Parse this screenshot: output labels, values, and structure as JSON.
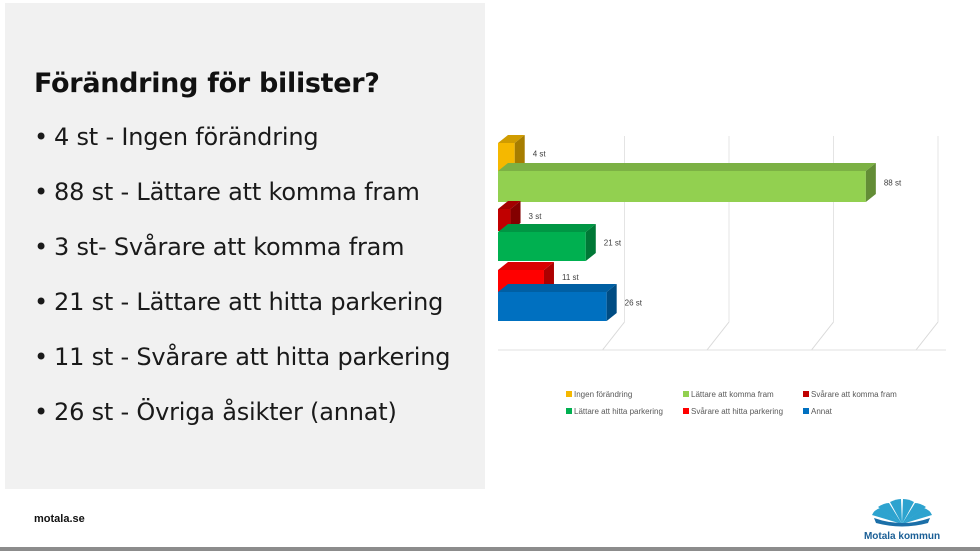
{
  "slide": {
    "title": "Förändring för bilister?",
    "bullets": [
      "4 st - Ingen förändring",
      "88 st - Lättare att komma fram",
      "3 st- Svårare att komma fram",
      "21 st - Lättare att hitta parkering",
      "11 st - Svårare att hitta parkering",
      "26 st - Övriga åsikter (annat)"
    ]
  },
  "footer": {
    "site": "motala.se",
    "logo_text": "Motala kommun"
  },
  "chart_data": {
    "type": "bar",
    "orientation": "horizontal",
    "style": "3d-clustered",
    "grid": true,
    "legend_position": "bottom",
    "xlim": [
      0,
      100
    ],
    "series": [
      {
        "name": "Ingen förändring",
        "value": 4,
        "label": "4 st",
        "color": "#f5b800"
      },
      {
        "name": "Lättare att komma fram",
        "value": 88,
        "label": "88 st",
        "color": "#92d050"
      },
      {
        "name": "Svårare att komma fram",
        "value": 3,
        "label": "3 st",
        "color": "#c00000"
      },
      {
        "name": "Lättare att hitta parkering",
        "value": 21,
        "label": "21 st",
        "color": "#00b050"
      },
      {
        "name": "Svårare att hitta parkering",
        "value": 11,
        "label": "11 st",
        "color": "#ff0000"
      },
      {
        "name": "Annat",
        "value": 26,
        "label": "26 st",
        "color": "#0070c0"
      }
    ]
  }
}
